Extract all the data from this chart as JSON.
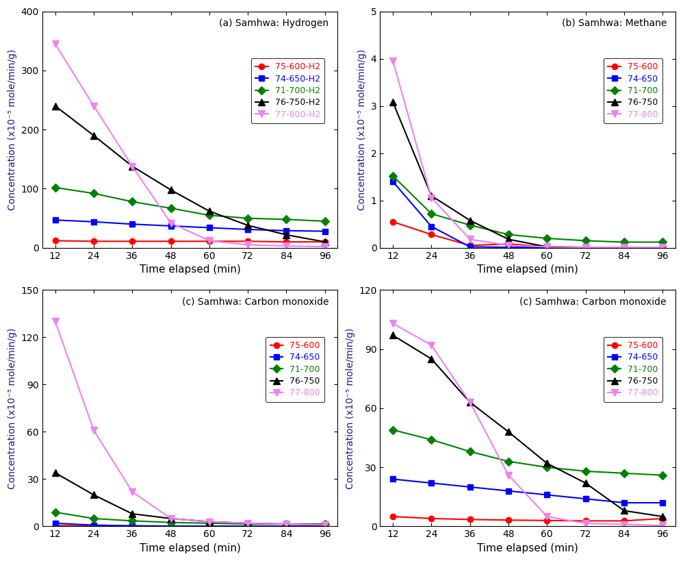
{
  "time": [
    12,
    24,
    36,
    48,
    60,
    72,
    84,
    96
  ],
  "panels": [
    {
      "title": "(a) Samhwa: Hydrogen",
      "ylabel": "Concentration (x10⁻⁵ mole/min/g)",
      "ylim": [
        0,
        400
      ],
      "yticks": [
        0,
        100,
        200,
        300,
        400
      ],
      "series": [
        {
          "label": "75-600-H2",
          "color": "#ff0000",
          "marker": "o",
          "markersize": 6,
          "data": [
            12,
            11,
            11,
            11,
            11,
            11,
            10,
            10
          ]
        },
        {
          "label": "74-650-H2",
          "color": "#0000ff",
          "marker": "s",
          "markersize": 6,
          "data": [
            47,
            44,
            40,
            37,
            34,
            31,
            29,
            28
          ]
        },
        {
          "label": "71-700-H2",
          "color": "#008000",
          "marker": "D",
          "markersize": 6,
          "data": [
            102,
            92,
            78,
            67,
            55,
            50,
            48,
            45
          ]
        },
        {
          "label": "76-750-H2",
          "color": "#000000",
          "marker": "^",
          "markersize": 7,
          "data": [
            240,
            190,
            138,
            98,
            62,
            38,
            22,
            10
          ]
        },
        {
          "label": "77-800-H2",
          "color": "#ee82ee",
          "marker": "v",
          "markersize": 7,
          "data": [
            345,
            240,
            138,
            42,
            12,
            5,
            3,
            2
          ]
        }
      ]
    },
    {
      "title": "(b) Samhwa: Methane",
      "ylabel": "Concentration (x10⁻⁵ mole/min/g)",
      "ylim": [
        0,
        5
      ],
      "yticks": [
        0,
        1,
        2,
        3,
        4,
        5
      ],
      "series": [
        {
          "label": "75-600",
          "color": "#ff0000",
          "marker": "o",
          "markersize": 6,
          "data": [
            0.55,
            0.28,
            0.05,
            0.08,
            0.02,
            0.01,
            0.01,
            0.01
          ]
        },
        {
          "label": "74-650",
          "color": "#0000ff",
          "marker": "s",
          "markersize": 6,
          "data": [
            1.4,
            0.45,
            0.02,
            0.01,
            0.01,
            0.01,
            0.01,
            0.01
          ]
        },
        {
          "label": "71-700",
          "color": "#008000",
          "marker": "D",
          "markersize": 6,
          "data": [
            1.52,
            0.72,
            0.48,
            0.28,
            0.2,
            0.15,
            0.12,
            0.12
          ]
        },
        {
          "label": "76-750",
          "color": "#000000",
          "marker": "^",
          "markersize": 7,
          "data": [
            3.08,
            1.1,
            0.58,
            0.18,
            0.02,
            0.01,
            0.01,
            0.01
          ]
        },
        {
          "label": "77-800",
          "color": "#ee82ee",
          "marker": "v",
          "markersize": 7,
          "data": [
            3.95,
            1.06,
            0.18,
            0.05,
            0.02,
            0.01,
            0.01,
            0.01
          ]
        }
      ]
    },
    {
      "title": "(c) Samhwa: Carbon monoxide",
      "ylabel": "Concentration (x10⁻⁵ mole/min/g)",
      "ylim": [
        0,
        150
      ],
      "yticks": [
        0,
        30,
        60,
        90,
        120,
        150
      ],
      "series": [
        {
          "label": "75-600",
          "color": "#ff0000",
          "marker": "o",
          "markersize": 6,
          "data": [
            0.5,
            0.3,
            0.2,
            0.15,
            0.1,
            0.1,
            0.1,
            0.1
          ]
        },
        {
          "label": "74-650",
          "color": "#0000ff",
          "marker": "s",
          "markersize": 6,
          "data": [
            2.0,
            0.8,
            0.4,
            0.2,
            0.15,
            0.1,
            0.1,
            0.1
          ]
        },
        {
          "label": "71-700",
          "color": "#008000",
          "marker": "D",
          "markersize": 6,
          "data": [
            9.0,
            5.0,
            3.5,
            2.5,
            2.0,
            1.5,
            1.5,
            1.5
          ]
        },
        {
          "label": "76-750",
          "color": "#000000",
          "marker": "^",
          "markersize": 7,
          "data": [
            34,
            20,
            8,
            5,
            3,
            2,
            1.5,
            1.2
          ]
        },
        {
          "label": "77-800",
          "color": "#ee82ee",
          "marker": "v",
          "markersize": 7,
          "data": [
            130,
            61,
            22,
            5,
            3,
            2,
            1.5,
            1.0
          ]
        }
      ]
    },
    {
      "title": "(c) Samhwa: Carbon monoxide",
      "ylabel": "Concentration (x10⁻⁵ mole/min/g)",
      "ylim": [
        0,
        120
      ],
      "yticks": [
        0,
        30,
        60,
        90,
        120
      ],
      "series": [
        {
          "label": "75-600",
          "color": "#ff0000",
          "marker": "o",
          "markersize": 6,
          "data": [
            5,
            4,
            3.5,
            3.2,
            3.0,
            2.8,
            2.8,
            4.0
          ]
        },
        {
          "label": "74-650",
          "color": "#0000ff",
          "marker": "s",
          "markersize": 6,
          "data": [
            24,
            22,
            20,
            18,
            16,
            14,
            12,
            12
          ]
        },
        {
          "label": "71-700",
          "color": "#008000",
          "marker": "D",
          "markersize": 6,
          "data": [
            49,
            44,
            38,
            33,
            30,
            28,
            27,
            26
          ]
        },
        {
          "label": "76-750",
          "color": "#000000",
          "marker": "^",
          "markersize": 7,
          "data": [
            97,
            85,
            63,
            48,
            32,
            22,
            8,
            5
          ]
        },
        {
          "label": "77-800",
          "color": "#ee82ee",
          "marker": "v",
          "markersize": 7,
          "data": [
            103,
            92,
            63,
            26,
            5,
            1.5,
            1,
            0.5
          ]
        }
      ]
    }
  ],
  "xlabel": "Time elapsed (min)",
  "xticks": [
    12,
    24,
    36,
    48,
    60,
    72,
    84,
    96
  ],
  "ylabel_color": "#1a1a8c",
  "background_color": "#ffffff"
}
